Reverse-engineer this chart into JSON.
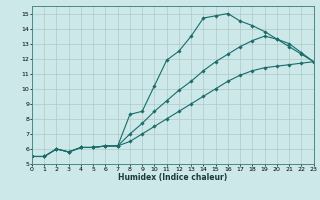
{
  "xlabel": "Humidex (Indice chaleur)",
  "bg_color": "#cce8e8",
  "grid_color": "#b0c8c8",
  "line_color": "#1a6b6b",
  "xlim": [
    0,
    23
  ],
  "ylim": [
    5,
    15.5
  ],
  "yticks": [
    5,
    6,
    7,
    8,
    9,
    10,
    11,
    12,
    13,
    14,
    15
  ],
  "xticks": [
    0,
    1,
    2,
    3,
    4,
    5,
    6,
    7,
    8,
    9,
    10,
    11,
    12,
    13,
    14,
    15,
    16,
    17,
    18,
    19,
    20,
    21,
    22,
    23
  ],
  "series": [
    {
      "x": [
        0,
        1,
        2,
        3,
        4,
        5,
        6,
        7,
        8,
        9,
        10,
        11,
        12,
        13,
        14,
        15,
        16,
        17,
        18,
        19,
        20,
        21,
        22,
        23
      ],
      "y": [
        5.5,
        5.5,
        6.0,
        5.8,
        6.1,
        6.1,
        6.2,
        6.2,
        8.3,
        8.5,
        10.2,
        11.9,
        12.5,
        13.5,
        14.7,
        14.85,
        15.0,
        14.5,
        14.2,
        13.8,
        13.3,
        13.0,
        12.4,
        11.8
      ]
    },
    {
      "x": [
        0,
        1,
        2,
        3,
        4,
        5,
        6,
        7,
        8,
        9,
        10,
        11,
        12,
        13,
        14,
        15,
        16,
        17,
        18,
        19,
        20,
        21,
        22,
        23
      ],
      "y": [
        5.5,
        5.5,
        6.0,
        5.8,
        6.1,
        6.1,
        6.2,
        6.2,
        7.0,
        7.7,
        8.5,
        9.2,
        9.9,
        10.5,
        11.2,
        11.8,
        12.3,
        12.8,
        13.2,
        13.5,
        13.3,
        12.8,
        12.3,
        11.8
      ]
    },
    {
      "x": [
        0,
        1,
        2,
        3,
        4,
        5,
        6,
        7,
        8,
        9,
        10,
        11,
        12,
        13,
        14,
        15,
        16,
        17,
        18,
        19,
        20,
        21,
        22,
        23
      ],
      "y": [
        5.5,
        5.5,
        6.0,
        5.8,
        6.1,
        6.1,
        6.2,
        6.2,
        6.5,
        7.0,
        7.5,
        8.0,
        8.5,
        9.0,
        9.5,
        10.0,
        10.5,
        10.9,
        11.2,
        11.4,
        11.5,
        11.6,
        11.7,
        11.8
      ]
    }
  ]
}
